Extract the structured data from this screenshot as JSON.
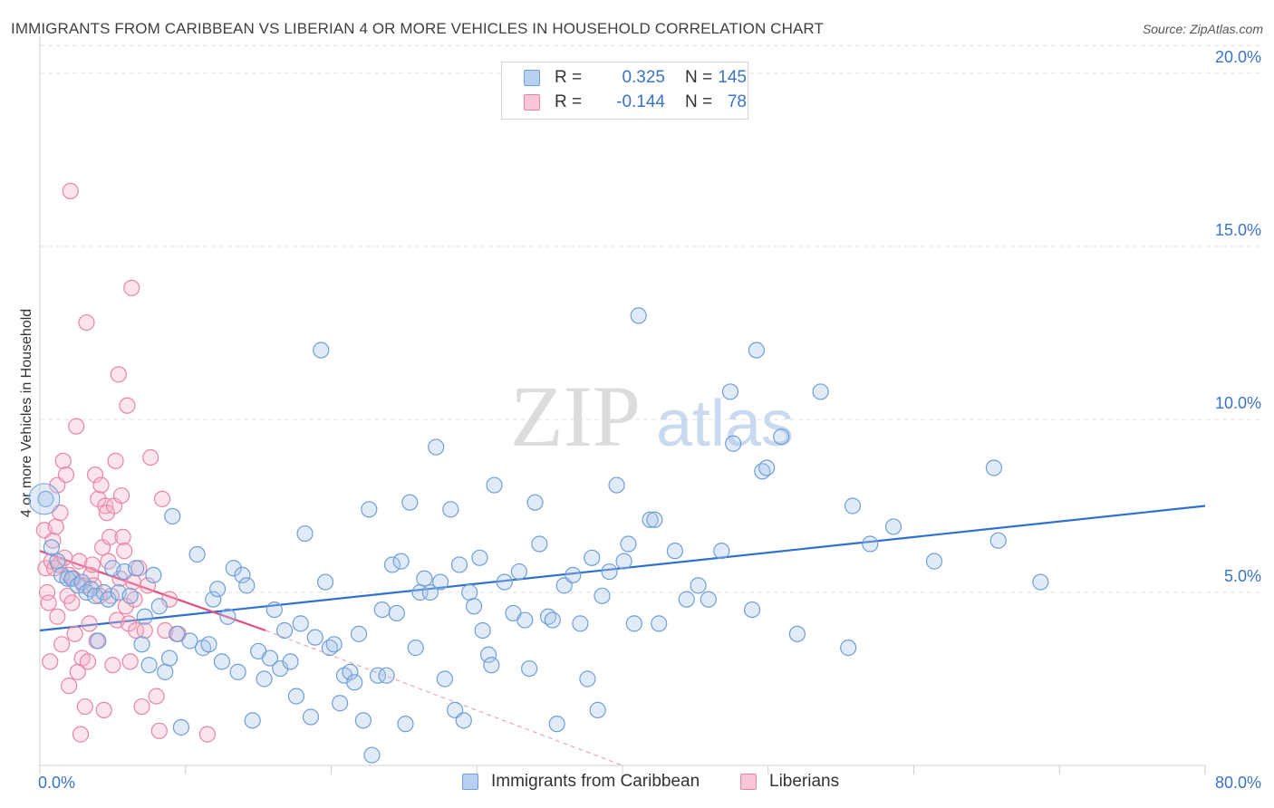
{
  "header": {
    "title": "IMMIGRANTS FROM CARIBBEAN VS LIBERIAN 4 OR MORE VEHICLES IN HOUSEHOLD CORRELATION CHART",
    "source": "Source: ZipAtlas.com"
  },
  "watermark": {
    "zip": "ZIP",
    "atlas": "atlas"
  },
  "legend": {
    "rows": [
      {
        "r_label": "R =",
        "r_value": "0.325",
        "n_label": "N =",
        "n_value": "145"
      },
      {
        "r_label": "R =",
        "r_value": "-0.144",
        "n_label": "N =",
        "n_value": "78"
      }
    ]
  },
  "colors": {
    "blue_fill": "#a9c7ec",
    "blue_stroke": "#6f9fd8",
    "blue_line": "#2f6fcf",
    "pink_fill": "#f5b3c6",
    "pink_stroke": "#e886a5",
    "pink_line": "#e0507e",
    "axis_text": "#3a74c8",
    "grid": "#e2e2e2"
  },
  "chart_data": {
    "type": "scatter",
    "title": "IMMIGRANTS FROM CARIBBEAN VS LIBERIAN 4 OR MORE VEHICLES IN HOUSEHOLD CORRELATION CHART",
    "xlabel": "",
    "ylabel": "4 or more Vehicles in Household",
    "xlim": [
      0,
      80
    ],
    "ylim": [
      0,
      20.8
    ],
    "x_tick_labels": [
      "0.0%",
      "80.0%"
    ],
    "y_ticks": [
      5,
      10,
      15,
      20
    ],
    "y_tick_labels": [
      "5.0%",
      "10.0%",
      "15.0%",
      "20.0%"
    ],
    "grid": true,
    "legend_position": "top-center",
    "series": [
      {
        "name": "Immigrants from Caribbean",
        "color": "blue",
        "R": 0.325,
        "N": 145,
        "trend": {
          "x": [
            0,
            80
          ],
          "y": [
            3.9,
            7.5
          ],
          "style": "solid"
        },
        "points": [
          [
            0.4,
            7.7
          ],
          [
            0.8,
            6.3
          ],
          [
            1.2,
            5.9
          ],
          [
            1.5,
            5.5
          ],
          [
            1.9,
            5.4
          ],
          [
            2.2,
            5.4
          ],
          [
            2.6,
            5.2
          ],
          [
            2.9,
            5.3
          ],
          [
            3.2,
            5.0
          ],
          [
            3.5,
            5.1
          ],
          [
            3.8,
            4.9
          ],
          [
            4.0,
            3.6
          ],
          [
            4.4,
            5.0
          ],
          [
            4.7,
            4.8
          ],
          [
            5.0,
            5.7
          ],
          [
            5.4,
            5.0
          ],
          [
            5.8,
            5.6
          ],
          [
            6.2,
            4.9
          ],
          [
            6.6,
            5.7
          ],
          [
            7.0,
            3.5
          ],
          [
            7.2,
            4.3
          ],
          [
            7.5,
            2.9
          ],
          [
            7.8,
            5.5
          ],
          [
            8.2,
            4.6
          ],
          [
            8.6,
            2.7
          ],
          [
            8.9,
            3.1
          ],
          [
            9.1,
            7.2
          ],
          [
            9.4,
            3.8
          ],
          [
            9.7,
            1.1
          ],
          [
            10.3,
            3.6
          ],
          [
            10.8,
            6.1
          ],
          [
            11.2,
            3.4
          ],
          [
            11.6,
            3.5
          ],
          [
            11.9,
            4.8
          ],
          [
            12.2,
            5.1
          ],
          [
            12.5,
            3.0
          ],
          [
            12.9,
            4.3
          ],
          [
            13.3,
            5.7
          ],
          [
            13.6,
            2.7
          ],
          [
            13.9,
            5.5
          ],
          [
            14.2,
            5.2
          ],
          [
            14.6,
            1.3
          ],
          [
            15.0,
            3.3
          ],
          [
            15.4,
            2.5
          ],
          [
            15.8,
            3.1
          ],
          [
            16.1,
            4.5
          ],
          [
            16.5,
            2.8
          ],
          [
            16.8,
            3.9
          ],
          [
            17.2,
            3.0
          ],
          [
            17.6,
            2.0
          ],
          [
            17.9,
            4.1
          ],
          [
            18.2,
            6.7
          ],
          [
            18.6,
            1.4
          ],
          [
            18.9,
            3.7
          ],
          [
            19.3,
            12.0
          ],
          [
            19.6,
            5.3
          ],
          [
            19.9,
            3.4
          ],
          [
            20.2,
            3.5
          ],
          [
            20.6,
            1.8
          ],
          [
            20.9,
            2.6
          ],
          [
            21.3,
            2.7
          ],
          [
            21.6,
            2.4
          ],
          [
            21.9,
            3.8
          ],
          [
            22.2,
            1.3
          ],
          [
            22.6,
            7.4
          ],
          [
            22.8,
            0.3
          ],
          [
            23.2,
            2.6
          ],
          [
            23.5,
            4.5
          ],
          [
            23.8,
            2.6
          ],
          [
            24.2,
            5.8
          ],
          [
            24.5,
            4.4
          ],
          [
            24.8,
            5.9
          ],
          [
            25.1,
            1.2
          ],
          [
            25.4,
            7.6
          ],
          [
            25.8,
            3.4
          ],
          [
            26.1,
            5.0
          ],
          [
            26.4,
            5.4
          ],
          [
            26.8,
            5.0
          ],
          [
            27.2,
            9.2
          ],
          [
            27.5,
            5.3
          ],
          [
            27.8,
            2.5
          ],
          [
            28.2,
            7.4
          ],
          [
            28.5,
            1.6
          ],
          [
            28.8,
            5.8
          ],
          [
            29.1,
            1.3
          ],
          [
            29.5,
            5.0
          ],
          [
            29.8,
            4.6
          ],
          [
            30.2,
            6.0
          ],
          [
            30.4,
            3.9
          ],
          [
            30.8,
            3.2
          ],
          [
            31.0,
            2.9
          ],
          [
            31.2,
            8.1
          ],
          [
            31.9,
            5.3
          ],
          [
            32.5,
            4.4
          ],
          [
            32.9,
            5.6
          ],
          [
            33.3,
            4.2
          ],
          [
            33.6,
            2.8
          ],
          [
            34.0,
            7.6
          ],
          [
            34.3,
            6.4
          ],
          [
            34.9,
            4.3
          ],
          [
            35.2,
            4.2
          ],
          [
            35.5,
            1.2
          ],
          [
            36.0,
            5.2
          ],
          [
            36.6,
            5.5
          ],
          [
            37.1,
            4.1
          ],
          [
            37.6,
            2.5
          ],
          [
            37.9,
            6.0
          ],
          [
            38.3,
            1.6
          ],
          [
            38.6,
            4.9
          ],
          [
            39.1,
            5.6
          ],
          [
            39.6,
            8.1
          ],
          [
            40.1,
            5.9
          ],
          [
            40.4,
            6.4
          ],
          [
            40.8,
            4.1
          ],
          [
            41.1,
            13.0
          ],
          [
            41.9,
            7.1
          ],
          [
            42.2,
            7.1
          ],
          [
            42.5,
            4.1
          ],
          [
            43.6,
            6.2
          ],
          [
            44.4,
            4.8
          ],
          [
            45.2,
            5.2
          ],
          [
            45.9,
            4.8
          ],
          [
            46.8,
            6.2
          ],
          [
            47.4,
            10.8
          ],
          [
            47.6,
            9.3
          ],
          [
            48.9,
            4.5
          ],
          [
            49.2,
            12.0
          ],
          [
            49.6,
            8.5
          ],
          [
            49.9,
            8.6
          ],
          [
            50.9,
            9.5
          ],
          [
            52.0,
            3.8
          ],
          [
            53.6,
            10.8
          ],
          [
            55.5,
            3.4
          ],
          [
            55.8,
            7.5
          ],
          [
            57.0,
            6.4
          ],
          [
            58.6,
            6.9
          ],
          [
            61.4,
            5.9
          ],
          [
            65.5,
            8.6
          ],
          [
            65.8,
            6.5
          ],
          [
            68.7,
            5.3
          ]
        ]
      },
      {
        "name": "Liberians",
        "color": "pink",
        "R": -0.144,
        "N": 78,
        "trend": {
          "x": [
            0,
            15.5
          ],
          "y": [
            6.2,
            3.9
          ],
          "style": "solid"
        },
        "trend_extension": {
          "x": [
            15.5,
            40.0
          ],
          "y": [
            3.9,
            0.0
          ],
          "style": "dashed"
        },
        "points": [
          [
            0.3,
            6.8
          ],
          [
            0.4,
            5.7
          ],
          [
            0.5,
            5.0
          ],
          [
            0.6,
            4.7
          ],
          [
            0.7,
            3.0
          ],
          [
            0.8,
            5.9
          ],
          [
            0.9,
            6.5
          ],
          [
            1.0,
            5.7
          ],
          [
            1.1,
            6.9
          ],
          [
            1.2,
            4.3
          ],
          [
            1.2,
            8.1
          ],
          [
            1.3,
            5.8
          ],
          [
            1.4,
            7.3
          ],
          [
            1.5,
            3.5
          ],
          [
            1.6,
            8.8
          ],
          [
            1.7,
            6.0
          ],
          [
            1.8,
            8.4
          ],
          [
            1.9,
            4.9
          ],
          [
            2.0,
            2.3
          ],
          [
            2.0,
            5.5
          ],
          [
            2.1,
            16.6
          ],
          [
            2.2,
            4.7
          ],
          [
            2.3,
            5.4
          ],
          [
            2.4,
            3.8
          ],
          [
            2.5,
            9.8
          ],
          [
            2.6,
            2.7
          ],
          [
            2.7,
            5.9
          ],
          [
            2.8,
            0.9
          ],
          [
            2.9,
            3.1
          ],
          [
            3.0,
            5.2
          ],
          [
            3.1,
            1.7
          ],
          [
            3.2,
            12.8
          ],
          [
            3.3,
            3.0
          ],
          [
            3.4,
            4.1
          ],
          [
            3.5,
            5.5
          ],
          [
            3.6,
            5.8
          ],
          [
            3.7,
            5.2
          ],
          [
            3.8,
            8.4
          ],
          [
            3.9,
            3.6
          ],
          [
            4.0,
            7.7
          ],
          [
            4.1,
            4.9
          ],
          [
            4.2,
            8.1
          ],
          [
            4.3,
            6.3
          ],
          [
            4.4,
            1.6
          ],
          [
            4.5,
            7.5
          ],
          [
            4.6,
            7.3
          ],
          [
            4.7,
            5.9
          ],
          [
            4.8,
            6.6
          ],
          [
            4.9,
            4.9
          ],
          [
            5.0,
            2.9
          ],
          [
            5.1,
            7.5
          ],
          [
            5.2,
            8.8
          ],
          [
            5.3,
            4.2
          ],
          [
            5.4,
            11.3
          ],
          [
            5.5,
            5.4
          ],
          [
            5.6,
            7.8
          ],
          [
            5.7,
            6.6
          ],
          [
            5.8,
            6.2
          ],
          [
            5.9,
            4.6
          ],
          [
            6.0,
            10.4
          ],
          [
            6.1,
            4.1
          ],
          [
            6.2,
            3.0
          ],
          [
            6.3,
            13.8
          ],
          [
            6.4,
            5.3
          ],
          [
            6.5,
            4.8
          ],
          [
            6.6,
            3.9
          ],
          [
            6.8,
            5.7
          ],
          [
            7.0,
            1.7
          ],
          [
            7.2,
            3.9
          ],
          [
            7.4,
            5.2
          ],
          [
            7.6,
            8.9
          ],
          [
            8.0,
            2.0
          ],
          [
            8.2,
            1.0
          ],
          [
            8.4,
            7.7
          ],
          [
            8.6,
            3.9
          ],
          [
            8.9,
            4.8
          ],
          [
            9.5,
            3.8
          ],
          [
            11.5,
            0.9
          ]
        ]
      }
    ]
  }
}
